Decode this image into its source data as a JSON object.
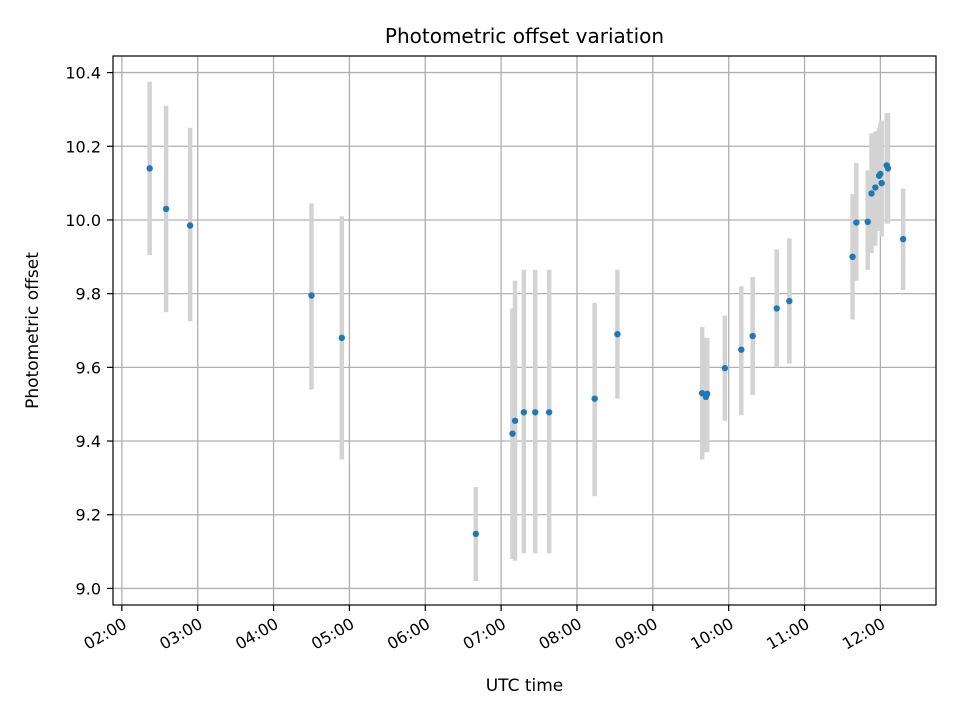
{
  "chart_data": {
    "type": "scatter",
    "title": "Photometric offset variation",
    "xlabel": "UTC time",
    "ylabel": "Photometric offset",
    "x_tick_labels": [
      "02:00",
      "03:00",
      "04:00",
      "05:00",
      "06:00",
      "07:00",
      "08:00",
      "09:00",
      "10:00",
      "11:00",
      "12:00"
    ],
    "y_tick_labels": [
      "9.0",
      "9.2",
      "9.4",
      "9.6",
      "9.8",
      "10.0",
      "10.2",
      "10.4"
    ],
    "xlim": [
      "01:53",
      "12:44"
    ],
    "ylim": [
      8.955,
      10.445
    ],
    "grid": true,
    "colors": {
      "point": "#1f77b4",
      "error_bar": "#d3d3d3",
      "grid": "#b0b0b0"
    },
    "series": [
      {
        "points": [
          {
            "x": "02:22",
            "y": 10.14,
            "low": 9.905,
            "high": 10.375
          },
          {
            "x": "02:35",
            "y": 10.03,
            "low": 9.75,
            "high": 10.31
          },
          {
            "x": "02:54",
            "y": 9.985,
            "low": 9.725,
            "high": 10.25
          },
          {
            "x": "04:30",
            "y": 9.795,
            "low": 9.54,
            "high": 10.045
          },
          {
            "x": "04:54",
            "y": 9.68,
            "low": 9.35,
            "high": 10.01
          },
          {
            "x": "06:40",
            "y": 9.148,
            "low": 9.02,
            "high": 9.275
          },
          {
            "x": "07:09",
            "y": 9.42,
            "low": 9.08,
            "high": 9.76
          },
          {
            "x": "07:11",
            "y": 9.455,
            "low": 9.075,
            "high": 9.835
          },
          {
            "x": "07:18",
            "y": 9.478,
            "low": 9.095,
            "high": 9.865
          },
          {
            "x": "07:27",
            "y": 9.478,
            "low": 9.095,
            "high": 9.865
          },
          {
            "x": "07:38",
            "y": 9.478,
            "low": 9.095,
            "high": 9.865
          },
          {
            "x": "08:14",
            "y": 9.515,
            "low": 9.25,
            "high": 9.775
          },
          {
            "x": "08:32",
            "y": 9.69,
            "low": 9.515,
            "high": 9.865
          },
          {
            "x": "09:39",
            "y": 9.53,
            "low": 9.35,
            "high": 9.71
          },
          {
            "x": "09:42",
            "y": 9.52,
            "low": 9.37,
            "high": 9.68
          },
          {
            "x": "09:43",
            "y": 9.528,
            "low": 9.37,
            "high": 9.68
          },
          {
            "x": "09:57",
            "y": 9.598,
            "low": 9.455,
            "high": 9.74
          },
          {
            "x": "10:10",
            "y": 9.648,
            "low": 9.47,
            "high": 9.82
          },
          {
            "x": "10:19",
            "y": 9.685,
            "low": 9.525,
            "high": 9.845
          },
          {
            "x": "10:38",
            "y": 9.76,
            "low": 9.6,
            "high": 9.92
          },
          {
            "x": "10:48",
            "y": 9.78,
            "low": 9.61,
            "high": 9.95
          },
          {
            "x": "11:38",
            "y": 9.9,
            "low": 9.73,
            "high": 10.07
          },
          {
            "x": "11:41",
            "y": 9.993,
            "low": 9.835,
            "high": 10.155
          },
          {
            "x": "11:50",
            "y": 9.995,
            "low": 9.865,
            "high": 10.135
          },
          {
            "x": "11:53",
            "y": 10.072,
            "low": 9.91,
            "high": 10.235
          },
          {
            "x": "11:56",
            "y": 10.088,
            "low": 9.93,
            "high": 10.24
          },
          {
            "x": "11:59",
            "y": 10.12,
            "low": 9.97,
            "high": 10.25
          },
          {
            "x": "12:00",
            "y": 10.125,
            "low": 9.98,
            "high": 10.265
          },
          {
            "x": "12:01",
            "y": 10.1,
            "low": 9.955,
            "high": 10.27
          },
          {
            "x": "12:05",
            "y": 10.148,
            "low": 9.99,
            "high": 10.29
          },
          {
            "x": "12:06",
            "y": 10.14,
            "low": 9.99,
            "high": 10.29
          },
          {
            "x": "12:18",
            "y": 9.948,
            "low": 9.81,
            "high": 10.085
          }
        ]
      }
    ]
  }
}
